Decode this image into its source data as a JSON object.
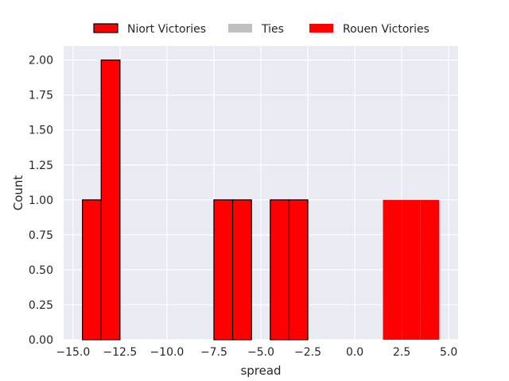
{
  "chart_data": {
    "type": "bar",
    "subtype": "histogram",
    "xlabel": "spread",
    "ylabel": "Count",
    "xlim": [
      -15.5,
      5.5
    ],
    "ylim": [
      0,
      2.1
    ],
    "x_ticks": [
      -15.0,
      -12.5,
      -10.0,
      -7.5,
      -5.0,
      -2.5,
      0.0,
      2.5,
      5.0
    ],
    "x_tick_labels": [
      "−15.0",
      "−12.5",
      "−10.0",
      "−7.5",
      "−5.0",
      "−2.5",
      "0.0",
      "2.5",
      "5.0"
    ],
    "y_ticks": [
      0,
      0.25,
      0.5,
      0.75,
      1.0,
      1.25,
      1.5,
      1.75,
      2.0
    ],
    "y_tick_labels": [
      "0.00",
      "0.25",
      "0.50",
      "0.75",
      "1.00",
      "1.25",
      "1.50",
      "1.75",
      "2.00"
    ],
    "grid": true,
    "legend_position": "top",
    "series": [
      {
        "name": "Niort Victories",
        "color": "#ff0000",
        "edgecolor": "#000000",
        "bins": [
          {
            "x0": -14.5,
            "x1": -13.5,
            "count": 1
          },
          {
            "x0": -13.5,
            "x1": -12.5,
            "count": 2
          },
          {
            "x0": -7.5,
            "x1": -6.5,
            "count": 1
          },
          {
            "x0": -6.5,
            "x1": -5.5,
            "count": 1
          },
          {
            "x0": -4.5,
            "x1": -3.5,
            "count": 1
          },
          {
            "x0": -3.5,
            "x1": -2.5,
            "count": 1
          }
        ]
      },
      {
        "name": "Ties",
        "color": "#c0c0c0",
        "edgecolor": "none",
        "bins": []
      },
      {
        "name": "Rouen Victories",
        "color": "#ff0000",
        "edgecolor": "none",
        "bins": [
          {
            "x0": 1.5,
            "x1": 2.5,
            "count": 1
          },
          {
            "x0": 2.5,
            "x1": 3.5,
            "count": 1
          },
          {
            "x0": 3.5,
            "x1": 4.5,
            "count": 1
          }
        ]
      }
    ]
  }
}
